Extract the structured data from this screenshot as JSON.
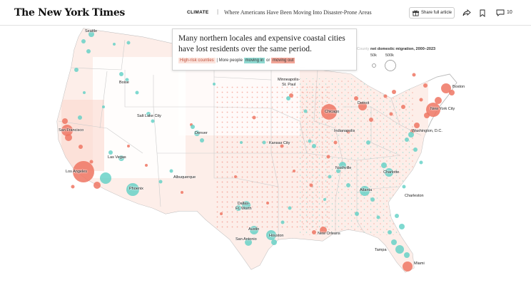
{
  "header": {
    "logo": "The New York Times",
    "section": "CLIMATE",
    "separator": "|",
    "headline": "Where Americans Have Been Moving Into Disaster-Prone Areas",
    "share_label": "Share full article",
    "comment_count": "10"
  },
  "annotation": {
    "text": "Many northern locales and expensive coastal cities have lost residents over the same period.",
    "legend_high_risk": "High-risk counties",
    "legend_divider": "|",
    "legend_prefix": "More people",
    "legend_moving_in": "moving in",
    "legend_or": "or",
    "legend_moving_out": "moving out"
  },
  "size_legend": {
    "title_faded": "County",
    "title": "net domestic migration, 2000–2023",
    "label_small": "50k",
    "label_large": "500k"
  },
  "cities": [
    {
      "id": "seattle",
      "name": "Seattle"
    },
    {
      "id": "boise",
      "name": "Boise"
    },
    {
      "id": "salt-lake-city",
      "name": "Salt Lake City"
    },
    {
      "id": "denver",
      "name": "Denver"
    },
    {
      "id": "san-francisco",
      "name": "San Francisco"
    },
    {
      "id": "las-vegas",
      "name": "Las Vegas"
    },
    {
      "id": "los-angeles",
      "name": "Los Angeles"
    },
    {
      "id": "phoenix",
      "name": "Phoenix"
    },
    {
      "id": "albuquerque",
      "name": "Albuquerque"
    },
    {
      "id": "minneapolis",
      "name": "Minneapolis-\nSt. Paul"
    },
    {
      "id": "chicago",
      "name": "Chicago"
    },
    {
      "id": "detroit",
      "name": "Detroit"
    },
    {
      "id": "indianapolis",
      "name": "Indianapolis"
    },
    {
      "id": "kansas-city",
      "name": "Kansas City"
    },
    {
      "id": "nashville",
      "name": "Nashville"
    },
    {
      "id": "atlanta",
      "name": "Atlanta"
    },
    {
      "id": "charlotte",
      "name": "Charlotte"
    },
    {
      "id": "charleston",
      "name": "Charleston"
    },
    {
      "id": "dallas",
      "name": "Dallas-\nFt. Worth"
    },
    {
      "id": "austin",
      "name": "Austin"
    },
    {
      "id": "san-antonio",
      "name": "San Antonio"
    },
    {
      "id": "houston",
      "name": "Houston"
    },
    {
      "id": "new-orleans",
      "name": "New Orleans"
    },
    {
      "id": "tampa",
      "name": "Tampa"
    },
    {
      "id": "miami",
      "name": "Miami"
    },
    {
      "id": "washington",
      "name": "Washington, D.C."
    },
    {
      "id": "new-york",
      "name": "New York City"
    },
    {
      "id": "boston",
      "name": "Boston"
    }
  ],
  "colors": {
    "moving_in": "#5fcfc4",
    "moving_out": "#ee7563",
    "high_risk": "#fbe3dc",
    "land": "#ffffff",
    "border": "#cfcfcf"
  }
}
